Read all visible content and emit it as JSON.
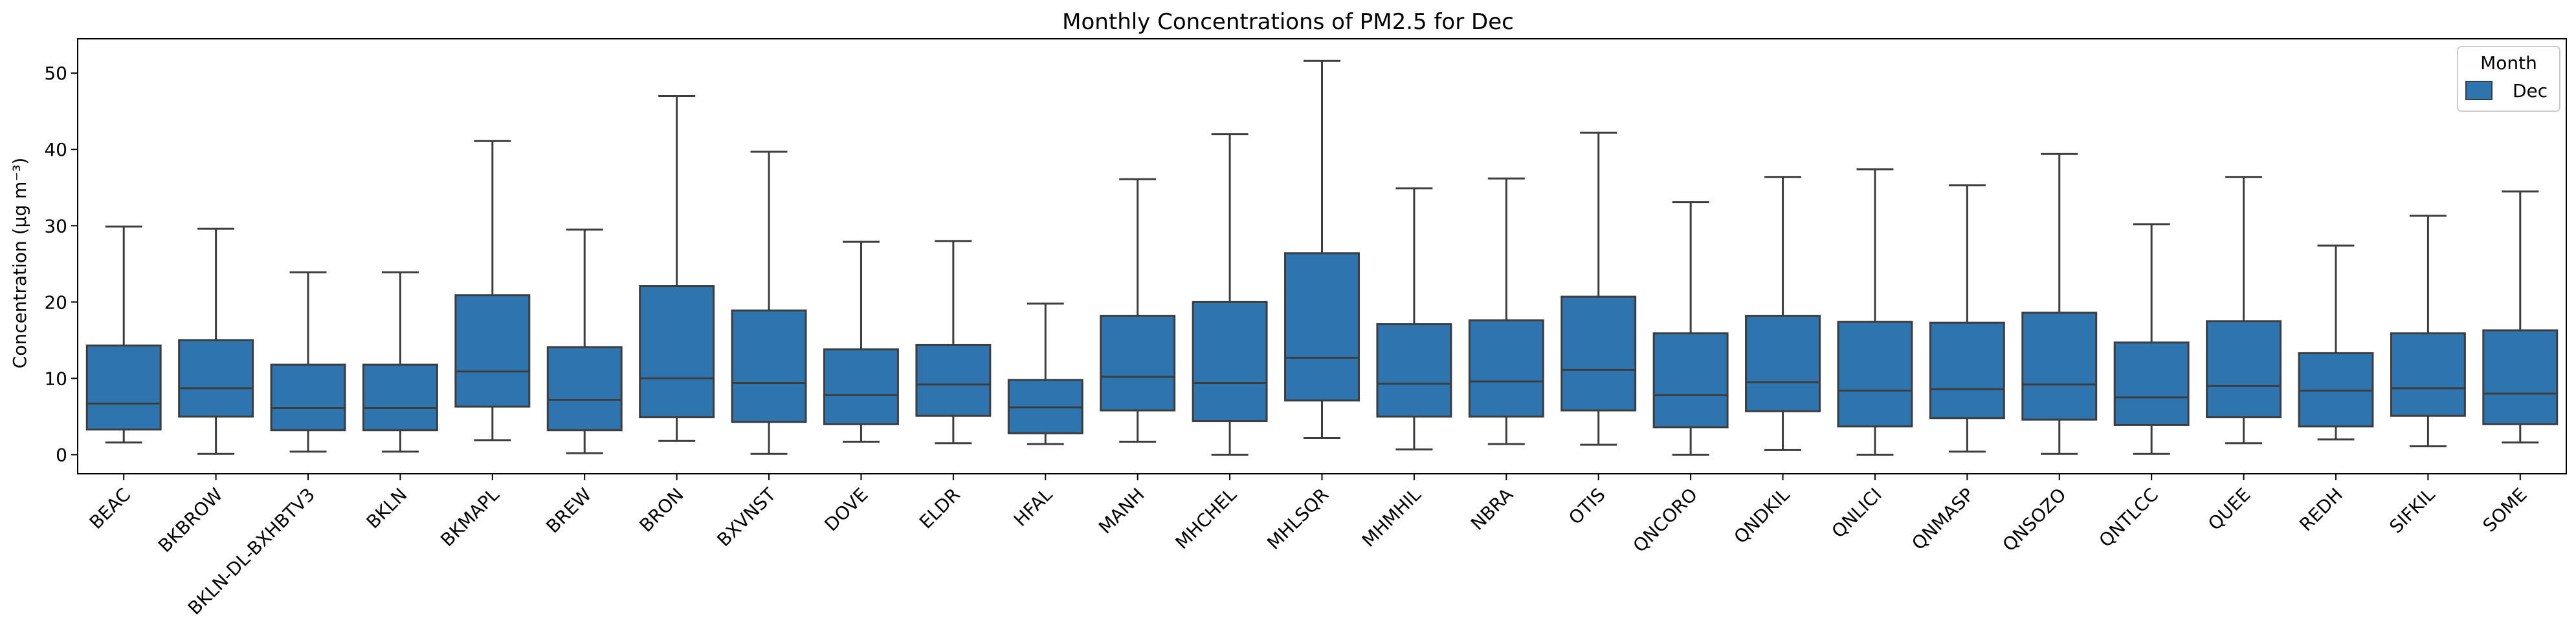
{
  "chart_data": {
    "type": "box",
    "title": "Monthly Concentrations of PM2.5 for Dec",
    "xlabel": "",
    "ylabel": "Concentration (µg m⁻³)",
    "ylim": [
      -2.5,
      54.5
    ],
    "yticks": [
      0,
      10,
      20,
      30,
      40,
      50
    ],
    "grid": false,
    "legend": {
      "title": "Month",
      "placement": "top-right",
      "entries": [
        "Dec"
      ]
    },
    "series": [
      {
        "name": "Dec",
        "color": "#2e75b0",
        "categories": [
          "BEAC",
          "BKBROW",
          "BKLN-DL-BXHBTV3",
          "BKLN",
          "BKMAPL",
          "BREW",
          "BRON",
          "BXVNST",
          "DOVE",
          "ELDR",
          "HFAL",
          "MANH",
          "MHCHEL",
          "MHLSQR",
          "MHMHIL",
          "NBRA",
          "OTIS",
          "QNCORO",
          "QNDKIL",
          "QNLICI",
          "QNMASP",
          "QNSOZO",
          "QNTLCC",
          "QUEE",
          "REDH",
          "SIFKIL",
          "SOME"
        ],
        "boxes": [
          {
            "whislo": 1.6,
            "q1": 3.3,
            "med": 6.7,
            "q3": 14.3,
            "whishi": 29.9
          },
          {
            "whislo": 0.1,
            "q1": 5.0,
            "med": 8.7,
            "q3": 15.0,
            "whishi": 29.6
          },
          {
            "whislo": 0.4,
            "q1": 3.2,
            "med": 6.1,
            "q3": 11.8,
            "whishi": 23.9
          },
          {
            "whislo": 0.4,
            "q1": 3.2,
            "med": 6.1,
            "q3": 11.8,
            "whishi": 23.9
          },
          {
            "whislo": 1.9,
            "q1": 6.3,
            "med": 10.9,
            "q3": 20.9,
            "whishi": 41.1
          },
          {
            "whislo": 0.2,
            "q1": 3.2,
            "med": 7.2,
            "q3": 14.1,
            "whishi": 29.5
          },
          {
            "whislo": 1.8,
            "q1": 4.9,
            "med": 10.0,
            "q3": 22.1,
            "whishi": 47.0
          },
          {
            "whislo": 0.1,
            "q1": 4.3,
            "med": 9.4,
            "q3": 18.9,
            "whishi": 39.7
          },
          {
            "whislo": 1.7,
            "q1": 4.0,
            "med": 7.8,
            "q3": 13.8,
            "whishi": 27.9
          },
          {
            "whislo": 1.5,
            "q1": 5.1,
            "med": 9.2,
            "q3": 14.4,
            "whishi": 28.0
          },
          {
            "whislo": 1.4,
            "q1": 2.8,
            "med": 6.2,
            "q3": 9.8,
            "whishi": 19.8
          },
          {
            "whislo": 1.7,
            "q1": 5.8,
            "med": 10.2,
            "q3": 18.2,
            "whishi": 36.1
          },
          {
            "whislo": 0.0,
            "q1": 4.4,
            "med": 9.4,
            "q3": 20.0,
            "whishi": 42.0
          },
          {
            "whislo": 2.2,
            "q1": 7.1,
            "med": 12.7,
            "q3": 26.4,
            "whishi": 51.6
          },
          {
            "whislo": 0.7,
            "q1": 5.0,
            "med": 9.3,
            "q3": 17.1,
            "whishi": 34.9
          },
          {
            "whislo": 1.4,
            "q1": 5.0,
            "med": 9.6,
            "q3": 17.6,
            "whishi": 36.2
          },
          {
            "whislo": 1.3,
            "q1": 5.8,
            "med": 11.1,
            "q3": 20.7,
            "whishi": 42.2
          },
          {
            "whislo": 0.0,
            "q1": 3.6,
            "med": 7.8,
            "q3": 15.9,
            "whishi": 33.1
          },
          {
            "whislo": 0.6,
            "q1": 5.7,
            "med": 9.5,
            "q3": 18.2,
            "whishi": 36.4
          },
          {
            "whislo": 0.0,
            "q1": 3.7,
            "med": 8.4,
            "q3": 17.4,
            "whishi": 37.4
          },
          {
            "whislo": 0.4,
            "q1": 4.8,
            "med": 8.6,
            "q3": 17.3,
            "whishi": 35.3
          },
          {
            "whislo": 0.1,
            "q1": 4.6,
            "med": 9.2,
            "q3": 18.6,
            "whishi": 39.4
          },
          {
            "whislo": 0.1,
            "q1": 3.9,
            "med": 7.5,
            "q3": 14.7,
            "whishi": 30.2
          },
          {
            "whislo": 1.5,
            "q1": 4.9,
            "med": 9.0,
            "q3": 17.5,
            "whishi": 36.4
          },
          {
            "whislo": 2.0,
            "q1": 3.7,
            "med": 8.4,
            "q3": 13.3,
            "whishi": 27.4
          },
          {
            "whislo": 1.1,
            "q1": 5.1,
            "med": 8.7,
            "q3": 15.9,
            "whishi": 31.3
          },
          {
            "whislo": 1.6,
            "q1": 4.0,
            "med": 8.0,
            "q3": 16.3,
            "whishi": 34.5
          }
        ]
      }
    ]
  }
}
